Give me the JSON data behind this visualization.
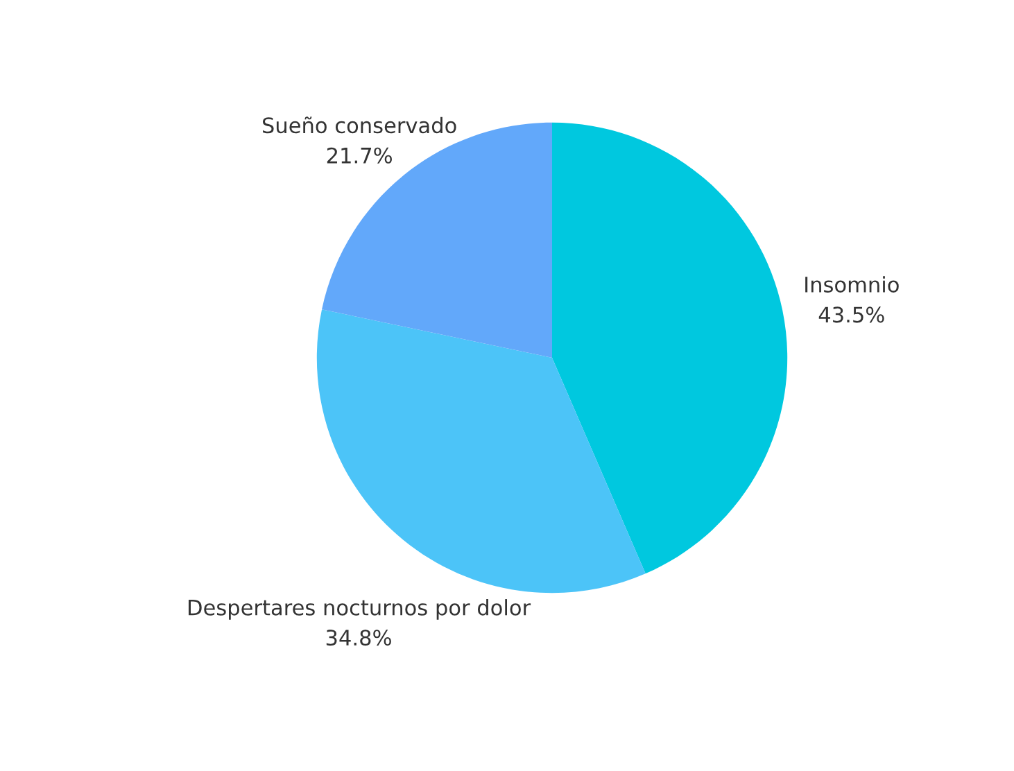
{
  "chart_data": {
    "type": "pie",
    "categories": [
      "Insomnio",
      "Despertares nocturnos por dolor",
      "Sueño conservado"
    ],
    "values": [
      43.5,
      34.8,
      21.7
    ],
    "value_labels": [
      "43.5%",
      "34.8%",
      "21.7%"
    ],
    "colors": [
      "#00c8df",
      "#4cc4f8",
      "#62a8fa"
    ],
    "legend": false
  }
}
